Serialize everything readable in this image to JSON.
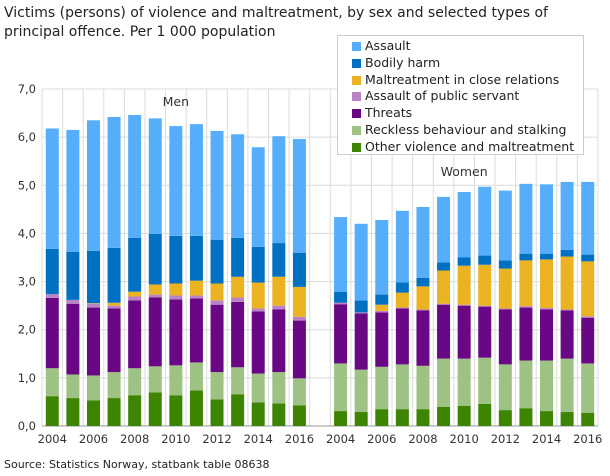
{
  "chart_data": {
    "type": "bar",
    "stacked": true,
    "title": "Victims (persons) of violence and maltreatment, by sex and selected types of principal offence. Per 1 000 population",
    "source": "Source: Statistics Norway, statbank table 08638",
    "ylim": [
      0,
      7
    ],
    "yticks": [
      "0,0",
      "1,0",
      "2,0",
      "3,0",
      "4,0",
      "5,0",
      "6,0",
      "7,0"
    ],
    "grid": true,
    "legend_position": "top-right",
    "groups": [
      {
        "label": "Men",
        "categories": [
          "2004",
          "2005",
          "2006",
          "2007",
          "2008",
          "2009",
          "2010",
          "2011",
          "2012",
          "2013",
          "2014",
          "2015",
          "2016"
        ],
        "tick_labels": [
          "2004",
          "2006",
          "2008",
          "2010",
          "2012",
          "2014",
          "2016"
        ],
        "series": [
          {
            "name": "Other violence and maltreatment",
            "values": [
              0.62,
              0.58,
              0.53,
              0.58,
              0.64,
              0.7,
              0.64,
              0.74,
              0.55,
              0.66,
              0.49,
              0.47,
              0.43
            ]
          },
          {
            "name": "Reckless behaviour and stalking",
            "values": [
              0.58,
              0.49,
              0.52,
              0.54,
              0.56,
              0.54,
              0.62,
              0.58,
              0.57,
              0.56,
              0.6,
              0.65,
              0.56
            ]
          },
          {
            "name": "Threats",
            "values": [
              1.46,
              1.47,
              1.41,
              1.32,
              1.41,
              1.43,
              1.37,
              1.33,
              1.4,
              1.36,
              1.29,
              1.3,
              1.2
            ]
          },
          {
            "name": "Assault of public servant",
            "values": [
              0.08,
              0.08,
              0.08,
              0.06,
              0.08,
              0.06,
              0.08,
              0.06,
              0.09,
              0.09,
              0.06,
              0.08,
              0.08
            ]
          },
          {
            "name": "Maltreatment in close relations",
            "values": [
              0.0,
              0.0,
              0.01,
              0.06,
              0.1,
              0.21,
              0.25,
              0.31,
              0.35,
              0.43,
              0.54,
              0.6,
              0.62
            ]
          },
          {
            "name": "Bodily harm",
            "values": [
              0.94,
              1.0,
              1.09,
              1.14,
              1.12,
              1.05,
              0.99,
              0.93,
              0.91,
              0.81,
              0.74,
              0.7,
              0.71
            ]
          },
          {
            "name": "Assault",
            "values": [
              2.5,
              2.53,
              2.71,
              2.72,
              2.55,
              2.4,
              2.28,
              2.32,
              2.26,
              2.15,
              2.07,
              2.22,
              2.36
            ]
          }
        ]
      },
      {
        "label": "Women",
        "categories": [
          "2004",
          "2005",
          "2006",
          "2007",
          "2008",
          "2009",
          "2010",
          "2011",
          "2012",
          "2013",
          "2014",
          "2015",
          "2016"
        ],
        "tick_labels": [
          "2004",
          "2006",
          "2008",
          "2010",
          "2012",
          "2014",
          "2016"
        ],
        "series": [
          {
            "name": "Other violence and maltreatment",
            "values": [
              0.31,
              0.29,
              0.35,
              0.35,
              0.35,
              0.4,
              0.42,
              0.46,
              0.33,
              0.37,
              0.31,
              0.29,
              0.27
            ]
          },
          {
            "name": "Reckless behaviour and stalking",
            "values": [
              0.99,
              0.88,
              0.88,
              0.93,
              0.9,
              1.0,
              0.98,
              0.96,
              0.95,
              0.99,
              1.05,
              1.11,
              1.03
            ]
          },
          {
            "name": "Threats",
            "values": [
              1.23,
              1.17,
              1.13,
              1.16,
              1.15,
              1.12,
              1.1,
              1.06,
              1.14,
              1.1,
              1.06,
              1.0,
              0.95
            ]
          },
          {
            "name": "Assault of public servant",
            "values": [
              0.03,
              0.02,
              0.03,
              0.02,
              0.02,
              0.02,
              0.02,
              0.02,
              0.02,
              0.03,
              0.03,
              0.02,
              0.03
            ]
          },
          {
            "name": "Maltreatment in close relations",
            "values": [
              0.0,
              0.0,
              0.13,
              0.31,
              0.48,
              0.69,
              0.81,
              0.85,
              0.83,
              0.95,
              1.01,
              1.1,
              1.14
            ]
          },
          {
            "name": "Bodily harm",
            "values": [
              0.23,
              0.25,
              0.21,
              0.21,
              0.18,
              0.17,
              0.17,
              0.19,
              0.17,
              0.14,
              0.12,
              0.14,
              0.14
            ]
          },
          {
            "name": "Assault",
            "values": [
              1.55,
              1.59,
              1.55,
              1.49,
              1.47,
              1.36,
              1.36,
              1.43,
              1.45,
              1.45,
              1.44,
              1.41,
              1.51
            ]
          }
        ]
      }
    ],
    "legend": [
      {
        "name": "Assault",
        "color": "#56aefb"
      },
      {
        "name": "Bodily harm",
        "color": "#0070c3"
      },
      {
        "name": "Maltreatment in close relations",
        "color": "#ebb222"
      },
      {
        "name": "Assault of public servant",
        "color": "#b884c6"
      },
      {
        "name": "Threats",
        "color": "#690785"
      },
      {
        "name": "Reckless behaviour and stalking",
        "color": "#9dc283"
      },
      {
        "name": "Other violence and maltreatment",
        "color": "#3d8500"
      }
    ]
  }
}
